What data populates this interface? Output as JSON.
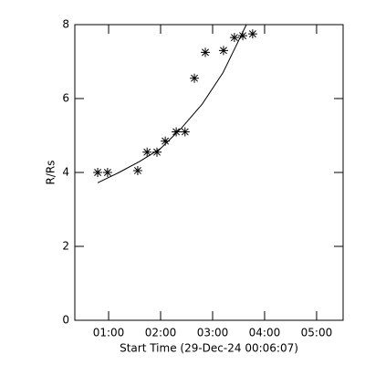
{
  "chart_data": {
    "type": "scatter",
    "x_label": "Start Time (29-Dec-24 00:06:07)",
    "y_label": "R/Rs",
    "xlim": [
      0.35,
      5.51
    ],
    "ylim": [
      0,
      8
    ],
    "xticks": [
      {
        "value": 1,
        "label": "01:00"
      },
      {
        "value": 2,
        "label": "02:00"
      },
      {
        "value": 3,
        "label": "03:00"
      },
      {
        "value": 4,
        "label": "04:00"
      },
      {
        "value": 5,
        "label": "05:00"
      }
    ],
    "yticks": [
      0,
      2,
      4,
      6,
      8
    ],
    "color": "#000000",
    "x": [
      0.79,
      0.98,
      1.56,
      1.74,
      1.93,
      2.09,
      2.3,
      2.47,
      2.65,
      2.86,
      3.21,
      3.42,
      3.58,
      3.77
    ],
    "values": [
      4.0,
      4.0,
      4.05,
      4.55,
      4.55,
      4.85,
      5.1,
      5.1,
      6.55,
      7.25,
      7.3,
      7.65,
      7.7,
      7.75
    ],
    "fit": {
      "x": [
        0.79,
        1.2,
        1.6,
        2.0,
        2.4,
        2.8,
        3.2,
        3.65
      ],
      "values": [
        3.72,
        4.0,
        4.3,
        4.65,
        5.2,
        5.85,
        6.7,
        8.0
      ]
    }
  }
}
